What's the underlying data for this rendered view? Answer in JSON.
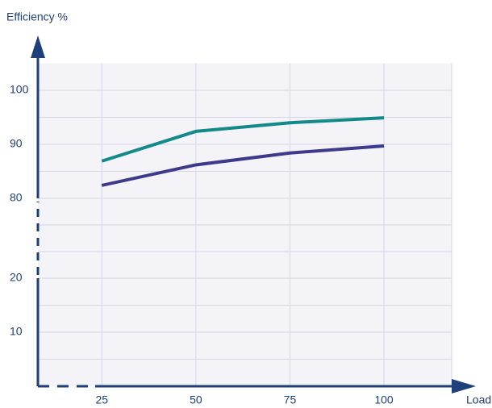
{
  "chart_data": {
    "type": "line",
    "x_label": "Load",
    "y_label": "Efficiency %",
    "x": [
      25,
      50,
      75,
      100
    ],
    "series": [
      {
        "color": "#13898a",
        "values": [
          86.9,
          92.4,
          94.0,
          94.9
        ]
      },
      {
        "color": "#3d3a8c",
        "values": [
          82.4,
          86.2,
          88.4,
          89.7
        ]
      }
    ],
    "xlim": [
      8,
      118
    ],
    "xticks": [
      25,
      50,
      75,
      100
    ],
    "ylim": [
      0,
      105
    ],
    "y_break": [
      20,
      80
    ],
    "yticks": [
      10,
      20,
      80,
      90,
      100
    ],
    "minor_yticks": [
      5,
      15,
      85,
      95
    ],
    "grid": true,
    "axis_color": "#1f3f7a"
  }
}
